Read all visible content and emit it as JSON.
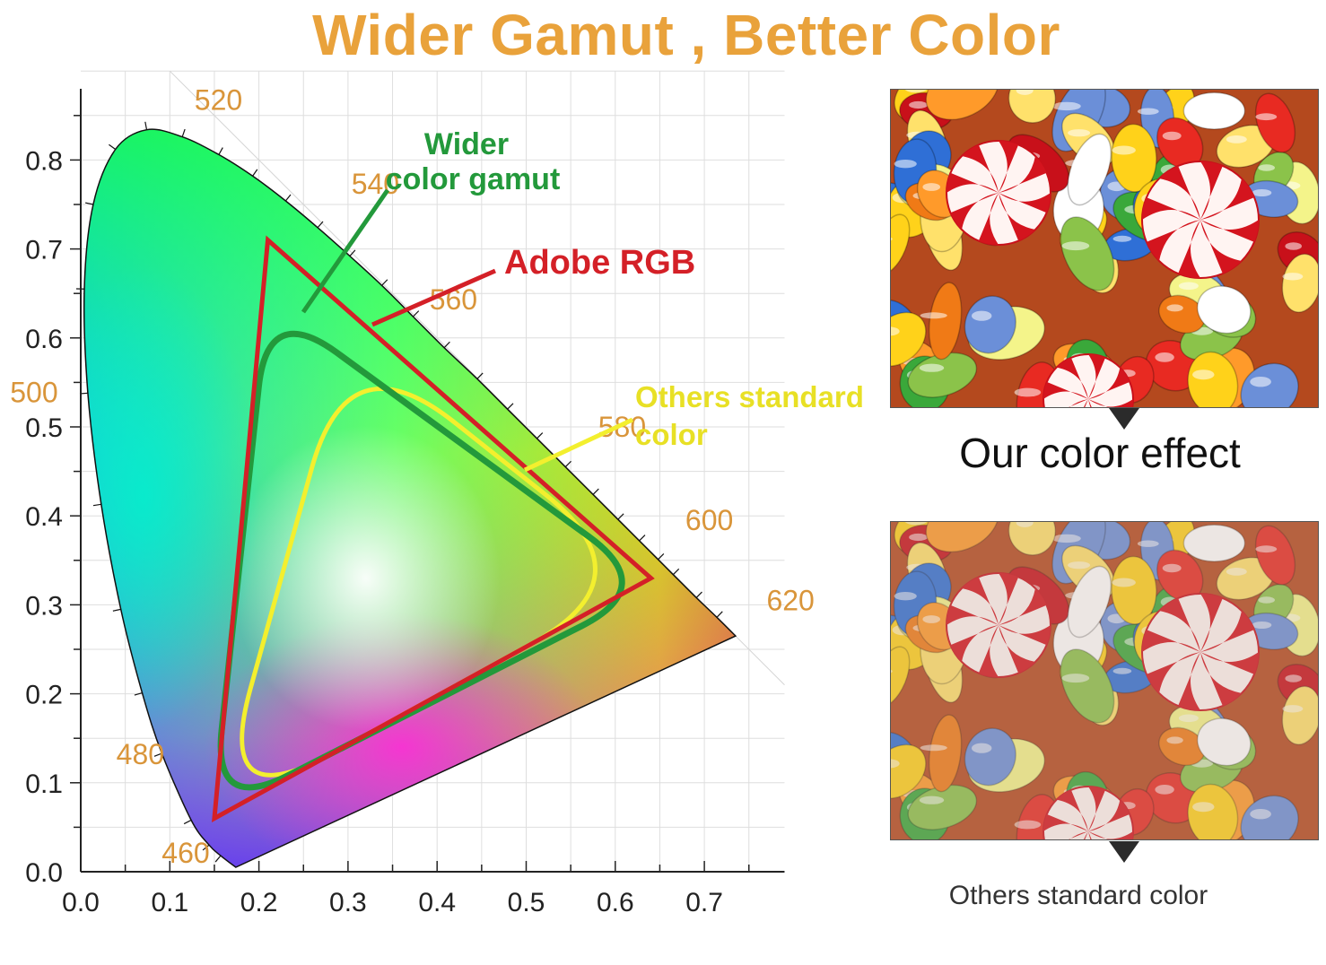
{
  "page": {
    "title": "Wider Gamut , Better Color",
    "title_color": "#e9a23b"
  },
  "comparison": {
    "ours_caption": "Our color effect",
    "others_caption": "Others standard color",
    "ours_image": "jelly-beans-candy-photo-vivid",
    "others_image": "jelly-beans-candy-photo-muted"
  },
  "chart_data": {
    "type": "scatter",
    "title": "",
    "xlabel": "",
    "ylabel": "",
    "xlim": [
      0,
      0.79
    ],
    "ylim": [
      0,
      0.9
    ],
    "x_ticks": [
      "0.0",
      "0.1",
      "0.2",
      "0.3",
      "0.4",
      "0.5",
      "0.6",
      "0.7"
    ],
    "y_ticks": [
      "0.0",
      "0.1",
      "0.2",
      "0.3",
      "0.4",
      "0.5",
      "0.6",
      "0.7",
      "0.8"
    ],
    "grid": true,
    "wavelength_labels": [
      {
        "text": "460",
        "nm": 460,
        "x": 0.144,
        "y": 0.03
      },
      {
        "text": "480",
        "nm": 480,
        "x": 0.091,
        "y": 0.133
      },
      {
        "text": "500",
        "nm": 500,
        "x": 0.008,
        "y": 0.538
      },
      {
        "text": "520",
        "nm": 520,
        "x": 0.074,
        "y": 0.834
      },
      {
        "text": "540",
        "nm": 540,
        "x": 0.23,
        "y": 0.754
      },
      {
        "text": "560",
        "nm": 560,
        "x": 0.373,
        "y": 0.624
      },
      {
        "text": "580",
        "nm": 580,
        "x": 0.512,
        "y": 0.487
      },
      {
        "text": "600",
        "nm": 600,
        "x": 0.627,
        "y": 0.372
      },
      {
        "text": "620",
        "nm": 620,
        "x": 0.691,
        "y": 0.308
      }
    ],
    "spectral_locus": [
      [
        0.174,
        0.005
      ],
      [
        0.157,
        0.018
      ],
      [
        0.144,
        0.03
      ],
      [
        0.124,
        0.058
      ],
      [
        0.091,
        0.133
      ],
      [
        0.069,
        0.201
      ],
      [
        0.045,
        0.295
      ],
      [
        0.023,
        0.413
      ],
      [
        0.008,
        0.538
      ],
      [
        0.004,
        0.655
      ],
      [
        0.014,
        0.75
      ],
      [
        0.039,
        0.812
      ],
      [
        0.074,
        0.834
      ],
      [
        0.114,
        0.826
      ],
      [
        0.155,
        0.806
      ],
      [
        0.193,
        0.782
      ],
      [
        0.23,
        0.754
      ],
      [
        0.266,
        0.724
      ],
      [
        0.302,
        0.692
      ],
      [
        0.338,
        0.659
      ],
      [
        0.373,
        0.624
      ],
      [
        0.408,
        0.589
      ],
      [
        0.445,
        0.554
      ],
      [
        0.479,
        0.52
      ],
      [
        0.512,
        0.487
      ],
      [
        0.544,
        0.455
      ],
      [
        0.575,
        0.424
      ],
      [
        0.603,
        0.396
      ],
      [
        0.627,
        0.372
      ],
      [
        0.648,
        0.351
      ],
      [
        0.665,
        0.334
      ],
      [
        0.691,
        0.308
      ],
      [
        0.714,
        0.286
      ],
      [
        0.735,
        0.265
      ]
    ],
    "series": [
      {
        "name": "Adobe RGB",
        "color": "#d42027",
        "shape": "triangle",
        "points": [
          [
            0.64,
            0.33
          ],
          [
            0.21,
            0.71
          ],
          [
            0.15,
            0.06
          ]
        ]
      },
      {
        "name": "Wider color gamut",
        "color": "#23993b",
        "shape": "rounded",
        "points": [
          [
            0.648,
            0.32
          ],
          [
            0.21,
            0.64
          ],
          [
            0.148,
            0.065
          ]
        ]
      },
      {
        "name": "Others standard color",
        "color": "#f3ef2e",
        "shape": "rounded",
        "points": [
          [
            0.64,
            0.33
          ],
          [
            0.3,
            0.6
          ],
          [
            0.15,
            0.06
          ]
        ]
      }
    ],
    "annotations": [
      {
        "text": "Wider",
        "color": "#23993b"
      },
      {
        "text": "color gamut",
        "color": "#23993b"
      },
      {
        "text": "Adobe RGB",
        "color": "#d42027"
      },
      {
        "text": "Others standard",
        "color": "#e8e025"
      },
      {
        "text": "color",
        "color": "#e8e025"
      }
    ],
    "tick_label_color": "#d9953a"
  }
}
